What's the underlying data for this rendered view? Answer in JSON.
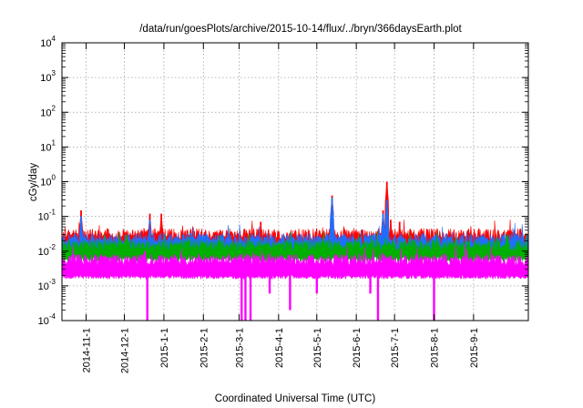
{
  "chart_data": {
    "type": "line",
    "title": "/data/run/goesPlots/archive/2015-10-14/flux/../bryn/366daysEarth.plot",
    "xlabel": "Coordinated Universal Time (UTC)",
    "ylabel": "cGy/day",
    "y_scale": "log",
    "ylim": [
      0.0001,
      10000
    ],
    "y_ticks": [
      {
        "base": "10",
        "exp": "-4"
      },
      {
        "base": "10",
        "exp": "-3"
      },
      {
        "base": "10",
        "exp": "-2"
      },
      {
        "base": "10",
        "exp": "-1"
      },
      {
        "base": "10",
        "exp": "0"
      },
      {
        "base": "10",
        "exp": "1"
      },
      {
        "base": "10",
        "exp": "2"
      },
      {
        "base": "10",
        "exp": "3"
      },
      {
        "base": "10",
        "exp": "4"
      }
    ],
    "xlim": [
      "2014-10-13",
      "2015-10-14"
    ],
    "x_ticks": [
      "2014-11-1",
      "2014-12-1",
      "2015-1-1",
      "2015-2-1",
      "2015-3-1",
      "2015-4-1",
      "2015-5-1",
      "2015-6-1",
      "2015-7-1",
      "2015-8-1",
      "2015-9-1"
    ],
    "grid": true,
    "series": [
      {
        "color": "#ff0000",
        "baseline": 0.03,
        "peaks": [
          [
            "2014-10-28",
            0.15
          ],
          [
            "2014-12-21",
            0.12
          ],
          [
            "2014-12-30",
            0.12
          ],
          [
            "2015-3-18",
            0.07
          ],
          [
            "2015-5-13",
            0.4
          ],
          [
            "2015-6-22",
            0.15
          ],
          [
            "2015-6-25",
            1.0
          ],
          [
            "2015-6-28",
            0.08
          ],
          [
            "2015-7-5",
            0.07
          ]
        ]
      },
      {
        "color": "#1f6fff",
        "baseline": 0.022,
        "peaks": [
          [
            "2014-10-28",
            0.1
          ],
          [
            "2014-12-21",
            0.08
          ],
          [
            "2015-5-13",
            0.35
          ],
          [
            "2015-6-22",
            0.12
          ],
          [
            "2015-6-25",
            0.3
          ]
        ]
      },
      {
        "color": "#00b000",
        "baseline": 0.014,
        "peaks": []
      },
      {
        "color": "#ff00ff",
        "baseline": 0.0055,
        "dips": [
          [
            "2014-12-19",
            0.0001
          ],
          [
            "2015-3-3",
            0.0001
          ],
          [
            "2015-3-6",
            0.0001
          ],
          [
            "2015-3-10",
            0.0001
          ],
          [
            "2015-3-25",
            0.0006
          ],
          [
            "2015-4-10",
            0.0002
          ],
          [
            "2015-5-1",
            0.0006
          ],
          [
            "2015-6-12",
            0.0006
          ],
          [
            "2015-6-18",
            0.0001
          ],
          [
            "2015-8-1",
            0.0001
          ]
        ]
      }
    ]
  }
}
